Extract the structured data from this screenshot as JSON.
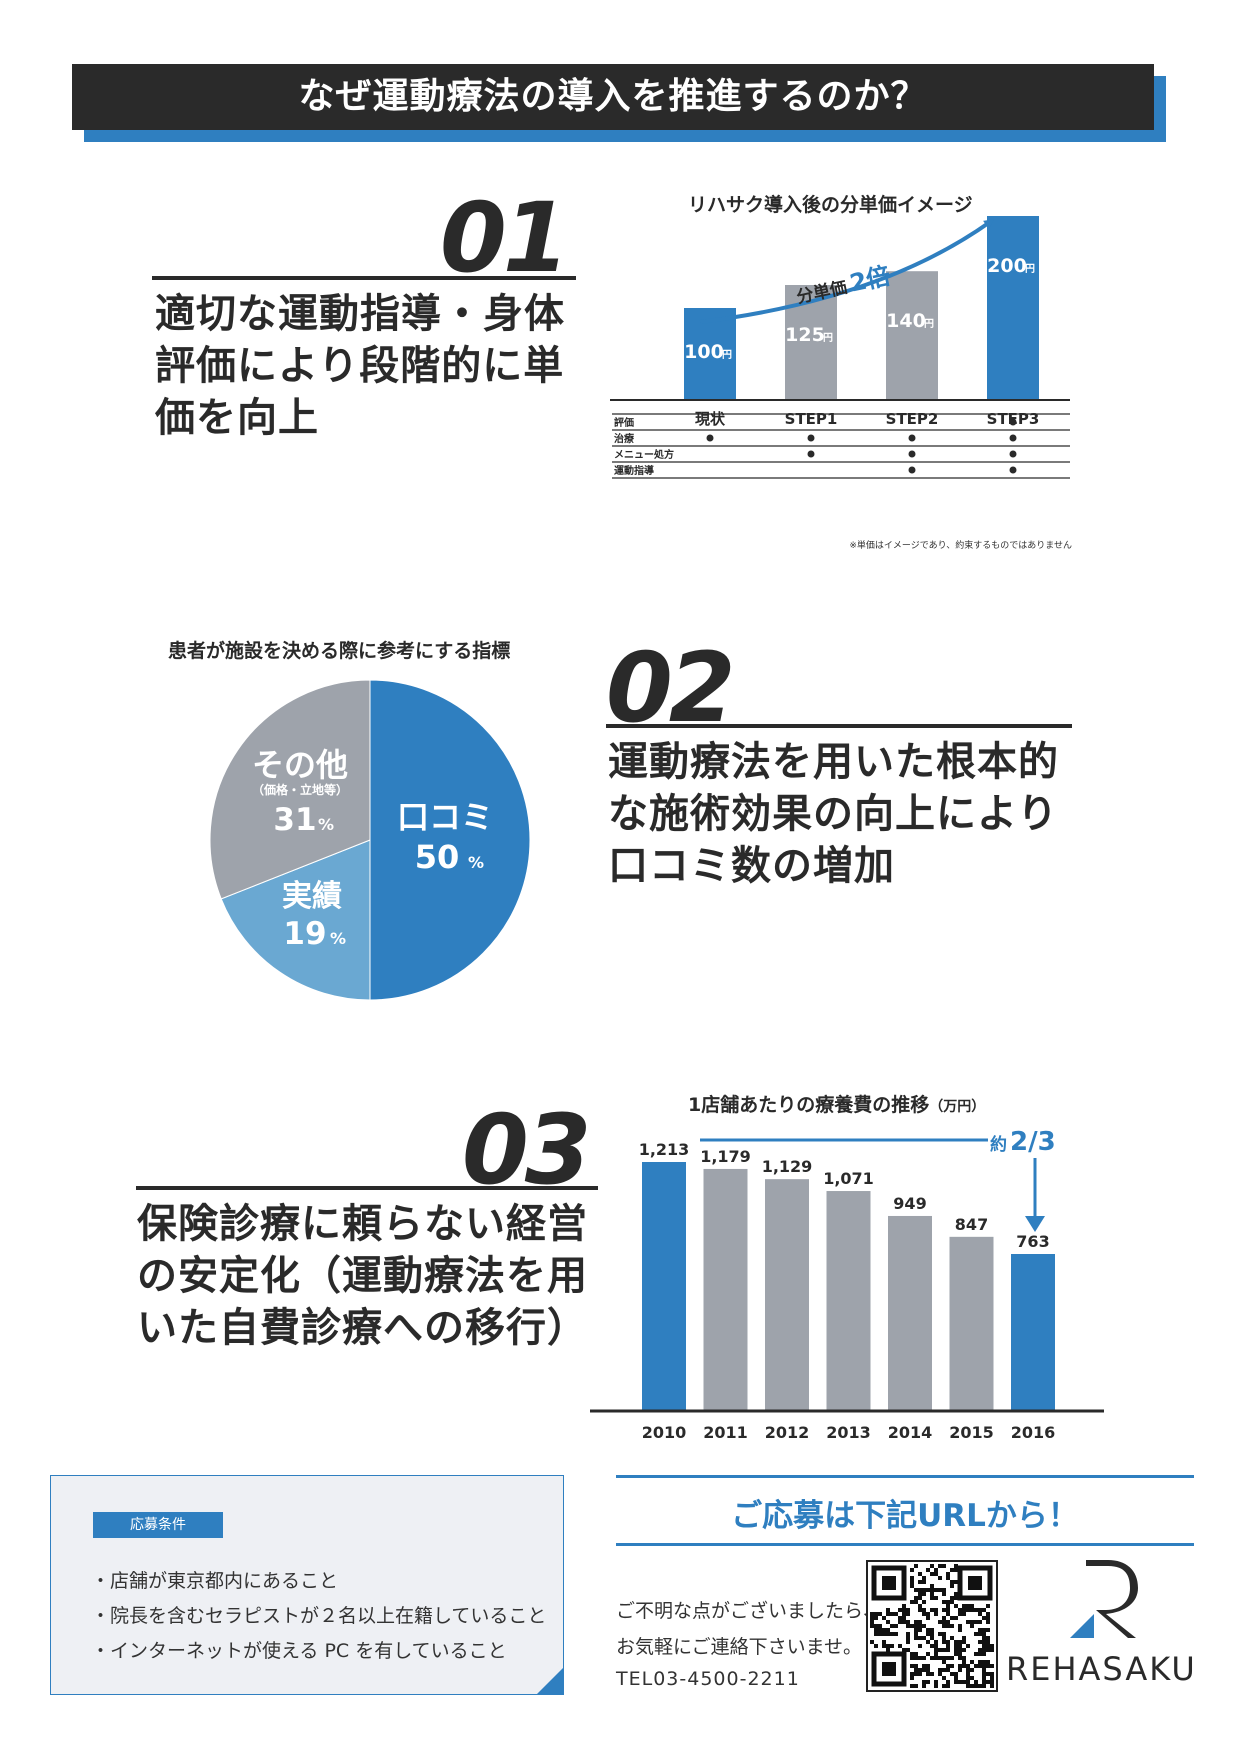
{
  "header": {
    "title": "なぜ運動療法の導入を推進するのか？"
  },
  "section1": {
    "number": "01",
    "lines": [
      "適切な運動指導・身体",
      "評価により段階的に単",
      "価を向上"
    ],
    "chart_title": "リハサク導入後の分単価イメージ",
    "arrow_label": "分単価",
    "arrow_multiplier": "2倍",
    "unit": "円",
    "rows": [
      "評価",
      "治療",
      "メニュー処方",
      "運動指導"
    ],
    "footnote": "※単価はイメージであり、約束するものではありません"
  },
  "section2": {
    "number": "02",
    "lines": [
      "運動療法を用いた根本的",
      "な施術効果の向上により",
      "口コミ数の増加"
    ],
    "chart_title": "患者が施設を決める際に参考にする指標",
    "sub_note": "（価格・立地等）"
  },
  "section3": {
    "number": "03",
    "lines": [
      "保険診療に頼らない経営",
      "の安定化（運動療法を用",
      "いた自費診療への移行）"
    ],
    "chart_title": "1店舗あたりの療養費の推移",
    "chart_unit": "（万円）",
    "annotation_prefix": "約",
    "annotation_value": "2/3"
  },
  "chart_data": [
    {
      "type": "bar",
      "title": "リハサク導入後の分単価イメージ",
      "categories": [
        "現状",
        "STEP1",
        "STEP2",
        "STEP3"
      ],
      "values": [
        100,
        125,
        140,
        200
      ],
      "value_labels": [
        "100",
        "125",
        "140",
        "200"
      ],
      "colors": [
        "#2f7fc0",
        "#9ea3ab",
        "#9ea3ab",
        "#2f7fc0"
      ],
      "matrix": {
        "評価": [
          false,
          false,
          false,
          true
        ],
        "治療": [
          true,
          true,
          true,
          true
        ],
        "メニュー処方": [
          false,
          true,
          true,
          true
        ],
        "運動指導": [
          false,
          false,
          true,
          true
        ]
      }
    },
    {
      "type": "pie",
      "title": "患者が施設を決める際に参考にする指標",
      "slices": [
        {
          "label": "口コミ",
          "value": 50,
          "text": "50",
          "color": "#2f7fc0"
        },
        {
          "label": "実績",
          "value": 19,
          "text": "19",
          "color": "#6aa8d2"
        },
        {
          "label": "その他",
          "value": 31,
          "text": "31",
          "color": "#9ea3ab"
        }
      ],
      "percent_sign": "%"
    },
    {
      "type": "bar",
      "title": "1店舗あたりの療養費の推移",
      "unit": "万円",
      "categories": [
        "2010",
        "2011",
        "2012",
        "2013",
        "2014",
        "2015",
        "2016"
      ],
      "values": [
        1213,
        1179,
        1129,
        1071,
        949,
        847,
        763
      ],
      "value_labels": [
        "1,213",
        "1,179",
        "1,129",
        "1,071",
        "949",
        "847",
        "763"
      ],
      "colors": [
        "#2f7fc0",
        "#9ea3ab",
        "#9ea3ab",
        "#9ea3ab",
        "#9ea3ab",
        "#9ea3ab",
        "#2f7fc0"
      ],
      "ylim": [
        0,
        1213
      ]
    }
  ],
  "conditions": {
    "label": "応募条件",
    "items": [
      "・店舗が東京都内にあること",
      "・院長を含むセラピストが２名以上在籍していること",
      "・インターネットが使える PC を有していること"
    ]
  },
  "apply": {
    "title": "ご応募は下記URLから！",
    "contact_line1": "ご不明な点がございましたら、",
    "contact_line2": "お気軽にご連絡下さいませ。",
    "tel": "TEL03-4500-2211",
    "brand": "REHASAKU"
  },
  "colors": {
    "accent": "#2f7fc0",
    "gray_bar": "#9ea3ab",
    "light_blue": "#6aa8d2",
    "dark": "#2a2a2a"
  }
}
